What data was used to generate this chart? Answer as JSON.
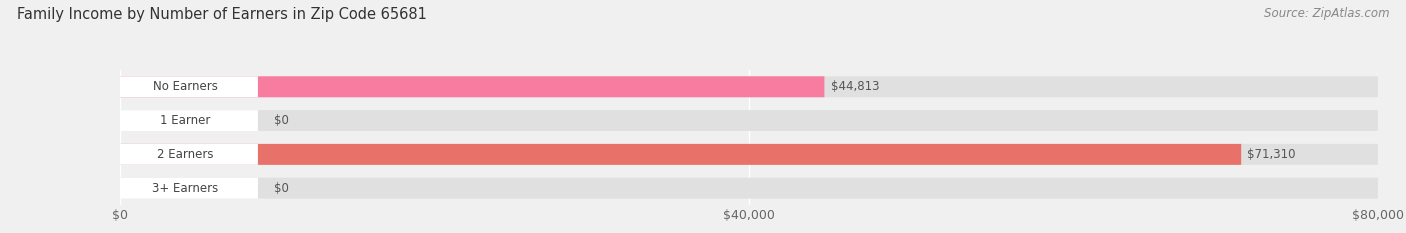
{
  "title": "Family Income by Number of Earners in Zip Code 65681",
  "source": "Source: ZipAtlas.com",
  "categories": [
    "No Earners",
    "1 Earner",
    "2 Earners",
    "3+ Earners"
  ],
  "values": [
    44813,
    0,
    71310,
    0
  ],
  "bar_colors": [
    "#f87ca0",
    "#f5c98a",
    "#e8726a",
    "#a8c4e0"
  ],
  "xlim_max": 80000,
  "xticks": [
    0,
    40000,
    80000
  ],
  "xtick_labels": [
    "$0",
    "$40,000",
    "$80,000"
  ],
  "background_color": "#f0f0f0",
  "bar_bg_color": "#e0e0e0",
  "title_fontsize": 10.5,
  "source_fontsize": 8.5,
  "bar_label_fontsize": 8.5,
  "value_label_fontsize": 8.5
}
